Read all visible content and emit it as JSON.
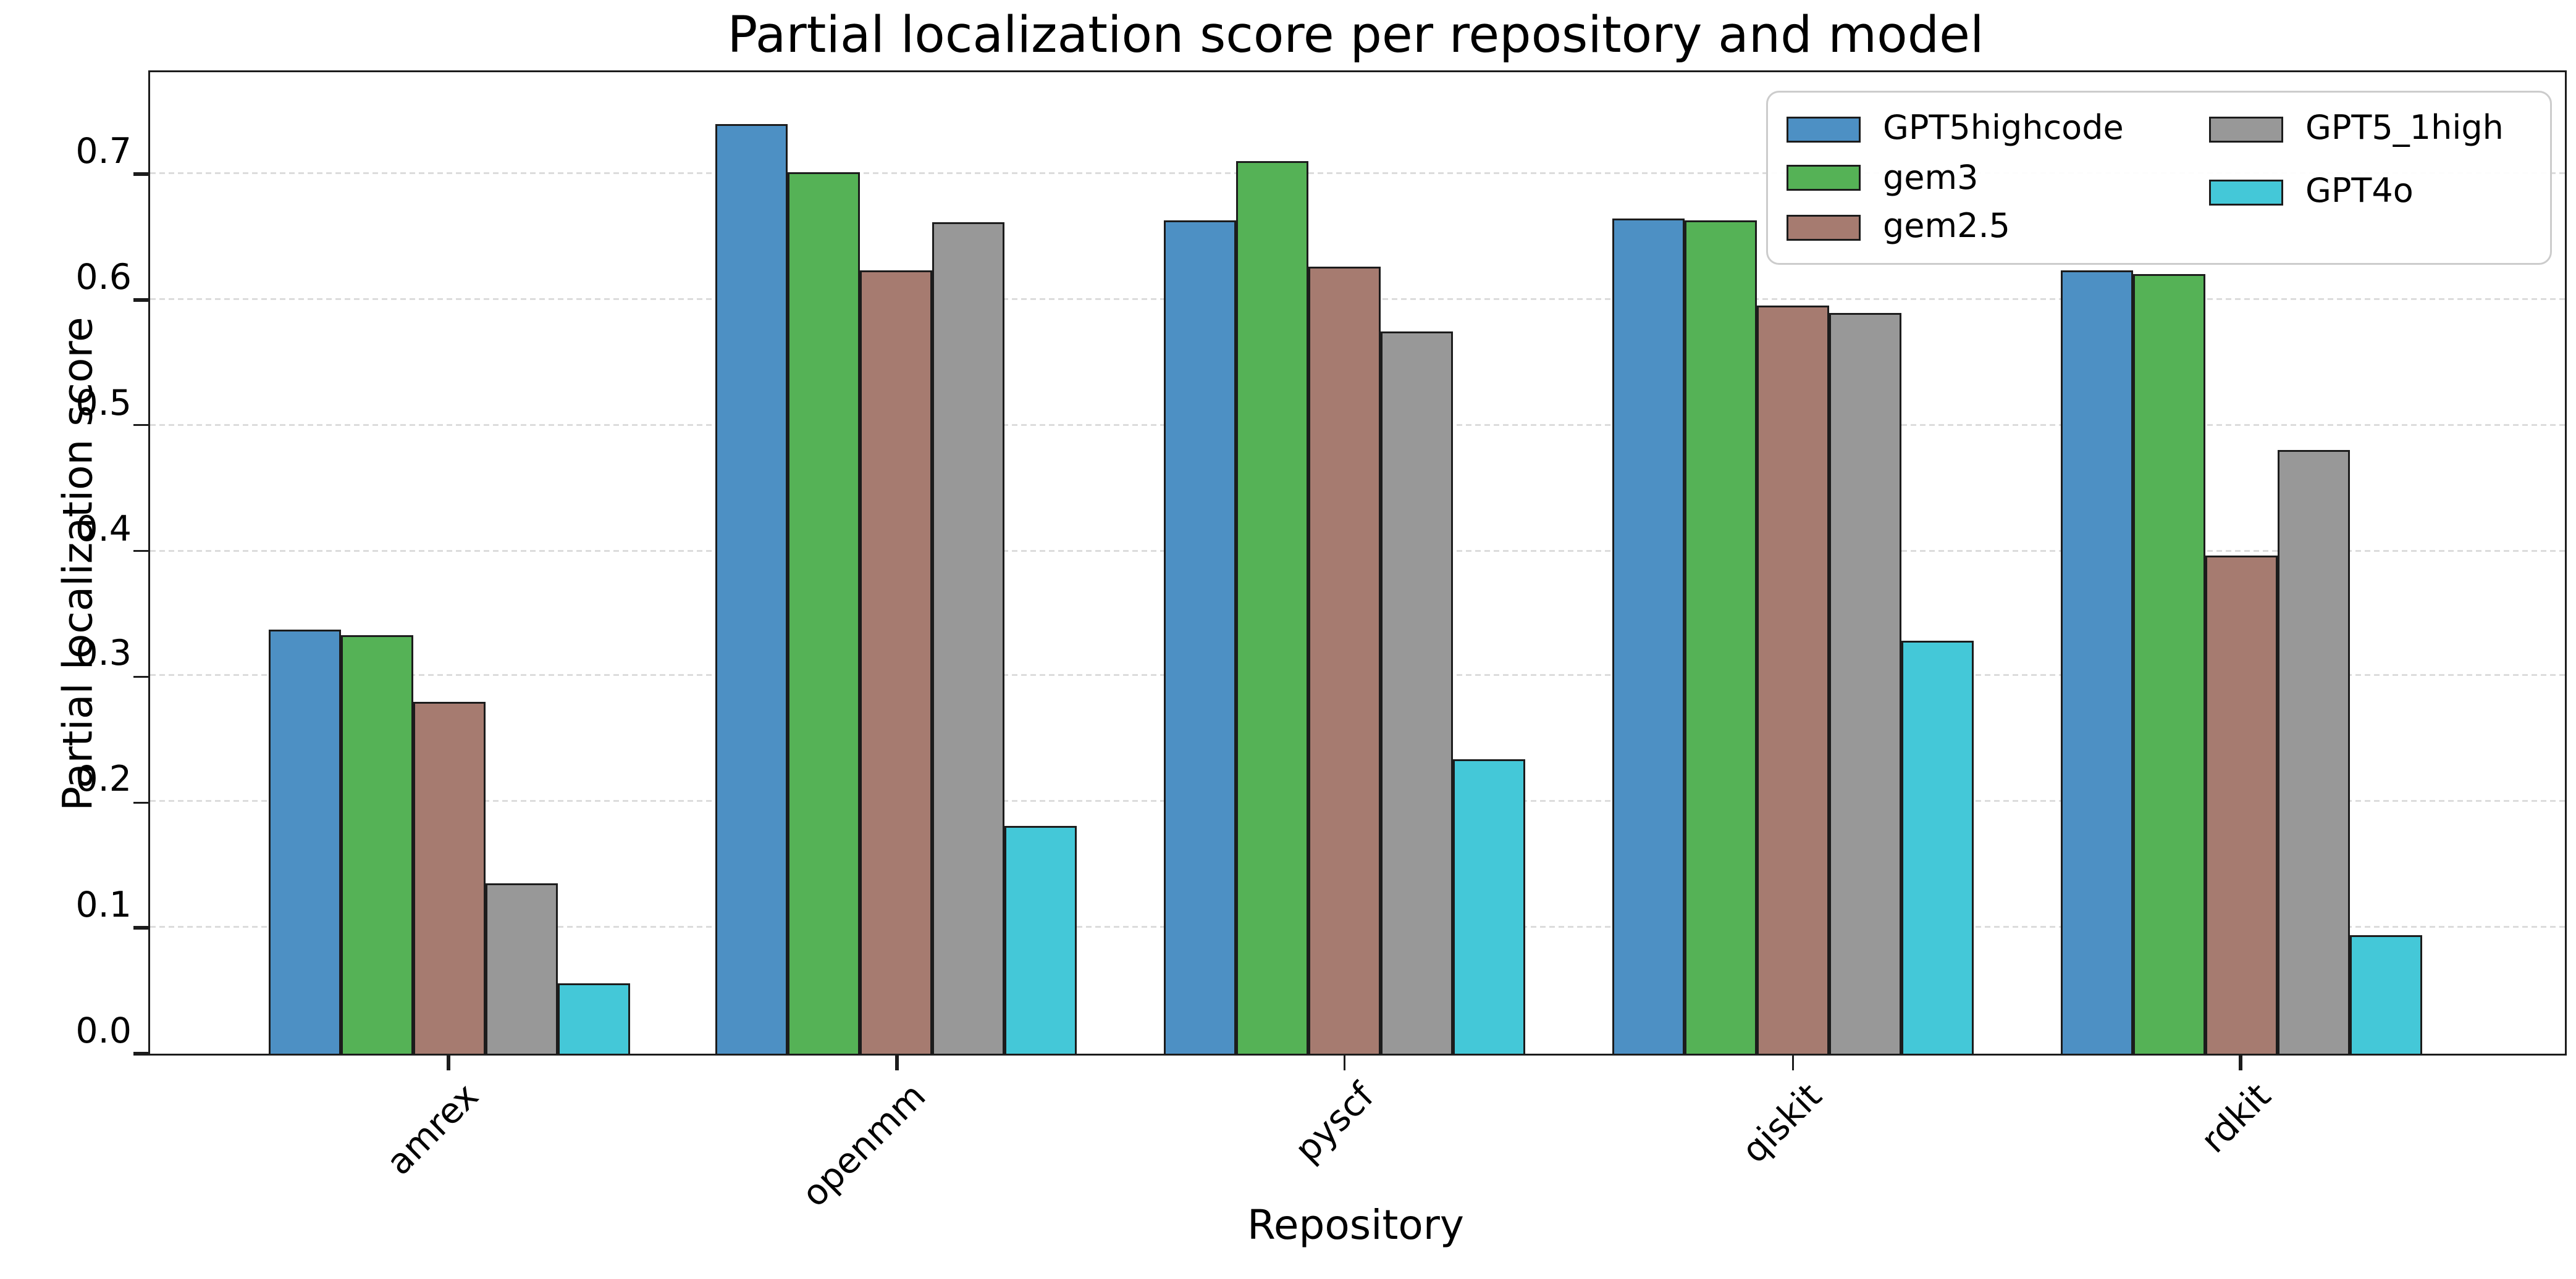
{
  "chart_data": {
    "type": "bar",
    "title": "Partial localization score per repository and model",
    "xlabel": "Repository",
    "ylabel": "Partial localization score",
    "categories": [
      "amrex",
      "openmm",
      "pyscf",
      "qiskit",
      "rdkit"
    ],
    "series": [
      {
        "name": "GPT5highcode",
        "color": "#4d90c4",
        "values": [
          0.338,
          0.74,
          0.663,
          0.665,
          0.623
        ]
      },
      {
        "name": "gem3",
        "color": "#55b256",
        "values": [
          0.333,
          0.702,
          0.71,
          0.663,
          0.621
        ]
      },
      {
        "name": "gem2.5",
        "color": "#a67b70",
        "values": [
          0.28,
          0.623,
          0.627,
          0.595,
          0.397
        ]
      },
      {
        "name": "GPT5_1high",
        "color": "#989898",
        "values": [
          0.135,
          0.662,
          0.574,
          0.59,
          0.481
        ]
      },
      {
        "name": "GPT4o",
        "color": "#44c8d8",
        "values": [
          0.056,
          0.182,
          0.235,
          0.328,
          0.095
        ]
      }
    ],
    "yticks": [
      "0.0",
      "0.1",
      "0.2",
      "0.3",
      "0.4",
      "0.5",
      "0.6",
      "0.7"
    ],
    "ylim": [
      0.0,
      0.781
    ],
    "grid": "horizontal-dashed",
    "grid_color": "#dcdcdc",
    "bar_edge_color": "#1c1c1c",
    "legend": {
      "position": "upper-right",
      "columns": [
        [
          "GPT5highcode",
          "gem3",
          "gem2.5"
        ],
        [
          "GPT5_1high",
          "GPT4o"
        ]
      ]
    }
  }
}
